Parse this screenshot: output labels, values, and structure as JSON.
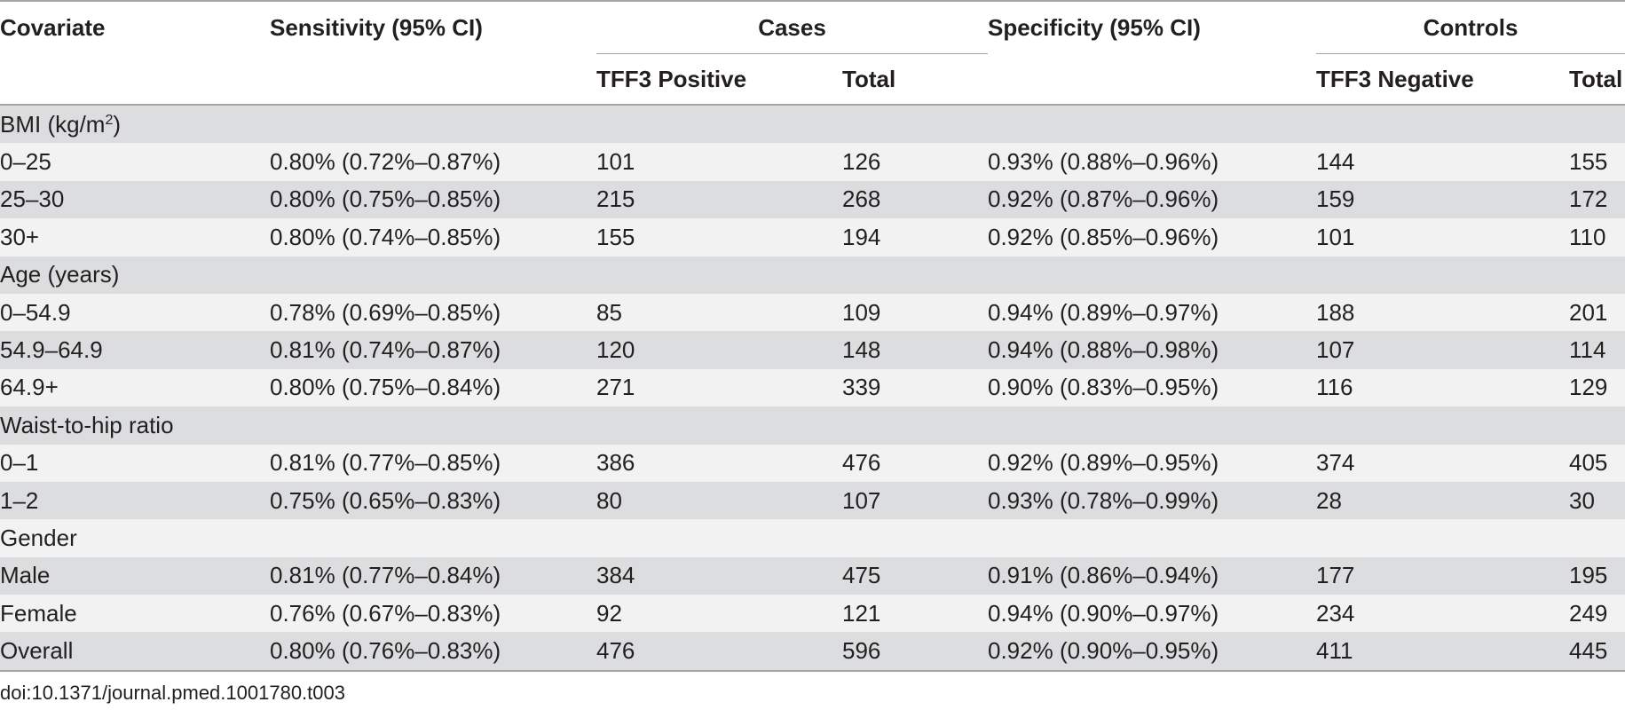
{
  "header": {
    "covariate": "Covariate",
    "sensitivity": "Sensitivity (95% CI)",
    "cases": "Cases",
    "specificity": "Specificity (95% CI)",
    "controls": "Controls",
    "tff3_positive": "TFF3 Positive",
    "cases_total": "Total",
    "tff3_negative": "TFF3 Negative",
    "controls_total": "Total"
  },
  "sections": {
    "bmi": {
      "label_prefix": "BMI (kg/m",
      "label_sup": "2",
      "label_suffix": ")"
    },
    "age": {
      "label": "Age (years)"
    },
    "whr": {
      "label": "Waist-to-hip ratio"
    },
    "gender": {
      "label": "Gender"
    }
  },
  "rows": [
    {
      "covariate": "0–25",
      "sensitivity": "0.80% (0.72%–0.87%)",
      "tff3_positive": "101",
      "cases_total": "126",
      "specificity": "0.93% (0.88%–0.96%)",
      "tff3_negative": "144",
      "controls_total": "155"
    },
    {
      "covariate": "25–30",
      "sensitivity": "0.80% (0.75%–0.85%)",
      "tff3_positive": "215",
      "cases_total": "268",
      "specificity": "0.92% (0.87%–0.96%)",
      "tff3_negative": "159",
      "controls_total": "172"
    },
    {
      "covariate": "30+",
      "sensitivity": "0.80% (0.74%–0.85%)",
      "tff3_positive": "155",
      "cases_total": "194",
      "specificity": "0.92% (0.85%–0.96%)",
      "tff3_negative": "101",
      "controls_total": "110"
    },
    {
      "covariate": "0–54.9",
      "sensitivity": "0.78% (0.69%–0.85%)",
      "tff3_positive": "85",
      "cases_total": "109",
      "specificity": "0.94% (0.89%–0.97%)",
      "tff3_negative": "188",
      "controls_total": "201"
    },
    {
      "covariate": "54.9–64.9",
      "sensitivity": "0.81% (0.74%–0.87%)",
      "tff3_positive": "120",
      "cases_total": "148",
      "specificity": "0.94% (0.88%–0.98%)",
      "tff3_negative": "107",
      "controls_total": "114"
    },
    {
      "covariate": "64.9+",
      "sensitivity": "0.80% (0.75%–0.84%)",
      "tff3_positive": "271",
      "cases_total": "339",
      "specificity": "0.90% (0.83%–0.95%)",
      "tff3_negative": "116",
      "controls_total": "129"
    },
    {
      "covariate": "0–1",
      "sensitivity": "0.81% (0.77%–0.85%)",
      "tff3_positive": "386",
      "cases_total": "476",
      "specificity": "0.92% (0.89%–0.95%)",
      "tff3_negative": "374",
      "controls_total": "405"
    },
    {
      "covariate": "1–2",
      "sensitivity": "0.75% (0.65%–0.83%)",
      "tff3_positive": "80",
      "cases_total": "107",
      "specificity": "0.93% (0.78%–0.99%)",
      "tff3_negative": "28",
      "controls_total": "30"
    },
    {
      "covariate": "Male",
      "sensitivity": "0.81% (0.77%–0.84%)",
      "tff3_positive": "384",
      "cases_total": "475",
      "specificity": "0.91% (0.86%–0.94%)",
      "tff3_negative": "177",
      "controls_total": "195"
    },
    {
      "covariate": "Female",
      "sensitivity": "0.76% (0.67%–0.83%)",
      "tff3_positive": "92",
      "cases_total": "121",
      "specificity": "0.94% (0.90%–0.97%)",
      "tff3_negative": "234",
      "controls_total": "249"
    },
    {
      "covariate": "Overall",
      "sensitivity": "0.80% (0.76%–0.83%)",
      "tff3_positive": "476",
      "cases_total": "596",
      "specificity": "0.92% (0.90%–0.95%)",
      "tff3_negative": "411",
      "controls_total": "445"
    }
  ],
  "footer": {
    "doi": "doi:10.1371/journal.pmed.1001780.t003"
  },
  "colors": {
    "band_dark": "#dcdddf",
    "band_light": "#f2f2f2",
    "rule": "#a6a6a6",
    "text": "#231f20"
  }
}
